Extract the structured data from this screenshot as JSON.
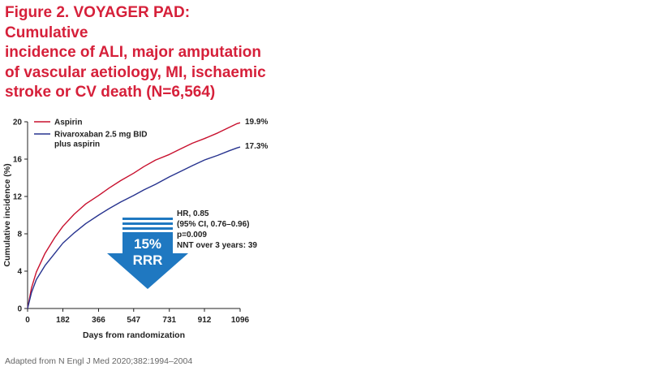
{
  "title": "Figure 2. VOYAGER PAD: Cumulative\nincidence of ALI, major amputation\nof vascular aetiology, MI, ischaemic\nstroke or CV death (N=6,564)",
  "source": "Adapted from N Engl J Med 2020;382:1994–2004",
  "colors": {
    "title": "#d6203a",
    "aspirin": "#c8102e",
    "rivaroxaban": "#27338f",
    "arrow": "#1f78c1"
  },
  "chart_data": {
    "type": "line",
    "title": "Figure 2. VOYAGER PAD: Cumulative incidence of ALI, major amputation of vascular aetiology, MI, ischaemic stroke or CV death (N=6,564)",
    "xlabel": "Days from randomization",
    "ylabel": "Cumulative incidence (%)",
    "xlim": [
      0,
      1096
    ],
    "ylim": [
      0,
      20
    ],
    "xticks": [
      0,
      182,
      366,
      547,
      731,
      912,
      1096
    ],
    "yticks": [
      0,
      4,
      8,
      12,
      16,
      20
    ],
    "grid": false,
    "legend": "top-left",
    "series": [
      {
        "name": "Aspirin",
        "color": "#c8102e",
        "end_label": "19.9%",
        "x": [
          0,
          20,
          45,
          90,
          140,
          182,
          240,
          300,
          366,
          420,
          480,
          547,
          600,
          660,
          731,
          790,
          850,
          912,
          980,
          1040,
          1080,
          1096
        ],
        "y": [
          0,
          2.2,
          3.9,
          5.9,
          7.6,
          8.8,
          10.1,
          11.2,
          12.1,
          12.9,
          13.7,
          14.5,
          15.2,
          15.9,
          16.5,
          17.1,
          17.7,
          18.2,
          18.8,
          19.4,
          19.8,
          19.9
        ]
      },
      {
        "name": "Rivaroxaban 2.5 mg BID plus aspirin",
        "color": "#27338f",
        "end_label": "17.3%",
        "x": [
          0,
          20,
          45,
          90,
          140,
          182,
          240,
          300,
          366,
          420,
          480,
          547,
          600,
          660,
          731,
          790,
          850,
          912,
          980,
          1040,
          1080,
          1096
        ],
        "y": [
          0,
          1.7,
          3.1,
          4.6,
          5.9,
          7.0,
          8.1,
          9.1,
          10.0,
          10.7,
          11.4,
          12.1,
          12.7,
          13.3,
          14.1,
          14.7,
          15.3,
          15.9,
          16.4,
          16.9,
          17.2,
          17.3
        ]
      }
    ],
    "annotations": {
      "stats": [
        "HR, 0.85",
        "(95% CI, 0.76–0.96)",
        "p=0.009",
        "NNT over 3 years: 39"
      ],
      "rrr_value": "15%",
      "rrr_label": "RRR"
    }
  }
}
